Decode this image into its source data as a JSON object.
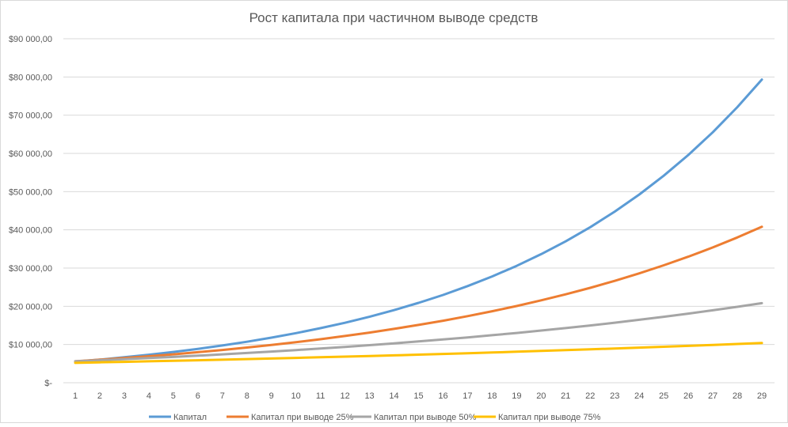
{
  "chart_data": {
    "type": "line",
    "title": "Рост капитала при частичном выводе средств",
    "xlabel": "",
    "ylabel": "",
    "ylim": [
      0,
      90000
    ],
    "y_ticks": [
      0,
      10000,
      20000,
      30000,
      40000,
      50000,
      60000,
      70000,
      80000,
      90000
    ],
    "y_tick_labels": [
      "$-",
      "$10 000,00",
      "$20 000,00",
      "$30 000,00",
      "$40 000,00",
      "$50 000,00",
      "$60 000,00",
      "$70 000,00",
      "$80 000,00",
      "$90 000,00"
    ],
    "x": [
      1,
      2,
      3,
      4,
      5,
      6,
      7,
      8,
      9,
      10,
      11,
      12,
      13,
      14,
      15,
      16,
      17,
      18,
      19,
      20,
      21,
      22,
      23,
      24,
      25,
      26,
      27,
      28,
      29
    ],
    "grid": true,
    "legend_position": "bottom",
    "series": [
      {
        "name": "Капитал",
        "color": "#5b9bd5",
        "values": [
          5500,
          6050,
          6655,
          7321,
          8053,
          8858,
          9744,
          10718,
          11790,
          12969,
          14266,
          15692,
          17262,
          18988,
          20887,
          22975,
          25273,
          27800,
          30580,
          33638,
          37002,
          40702,
          44772,
          49250,
          54175,
          59592,
          65551,
          72107,
          79317
        ]
      },
      {
        "name": "Капитал при выводе 25%",
        "color": "#ed7d31",
        "values": [
          5600,
          6012,
          6453,
          6928,
          7437,
          7983,
          8570,
          9200,
          9876,
          10602,
          11381,
          12218,
          13116,
          14080,
          15115,
          16226,
          17419,
          18699,
          20073,
          21549,
          23132,
          24833,
          26658,
          28617,
          30720,
          32978,
          35402,
          38004,
          40798
        ]
      },
      {
        "name": "Капитал при выводе 50%",
        "color": "#a5a5a5",
        "values": [
          5600,
          5869,
          6150,
          6446,
          6755,
          7080,
          7419,
          7775,
          8149,
          8539,
          8949,
          9379,
          9829,
          10301,
          10796,
          11314,
          11857,
          12426,
          13022,
          13647,
          14302,
          14989,
          15709,
          16462,
          17252,
          18081,
          18949,
          19858,
          20811
        ]
      },
      {
        "name": "Капитал при выводе 75%",
        "color": "#ffc000",
        "values": [
          5200,
          5330,
          5463,
          5600,
          5740,
          5883,
          6030,
          6181,
          6336,
          6494,
          6657,
          6823,
          6993,
          7168,
          7348,
          7531,
          7719,
          7912,
          8110,
          8313,
          8521,
          8734,
          8952,
          9176,
          9405,
          9640,
          9882,
          10129,
          10382
        ]
      }
    ]
  }
}
